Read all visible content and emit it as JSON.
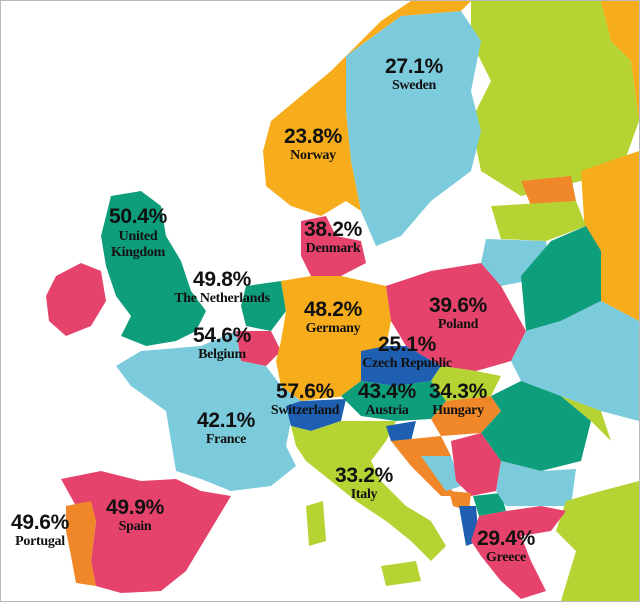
{
  "colors": {
    "sea": "#ffffff",
    "blue": "#7ccbdc",
    "orange": "#f7ad1b",
    "green": "#0f9e7c",
    "pink": "#e5436b",
    "lime": "#b6d334",
    "dark_orange": "#f0882a",
    "navy": "#1e5fb1"
  },
  "labels": {
    "sweden": {
      "pct": "27.1%",
      "name": "Sweden"
    },
    "norway": {
      "pct": "23.8%",
      "name": "Norway"
    },
    "uk": {
      "pct": "50.4%",
      "name": "United Kingdom"
    },
    "denmark": {
      "pct": "38.2%",
      "name": "Denmark"
    },
    "netherlands": {
      "pct": "49.8%",
      "name": "The Netherlands"
    },
    "germany": {
      "pct": "48.2%",
      "name": "Germany"
    },
    "poland": {
      "pct": "39.6%",
      "name": "Poland"
    },
    "belgium": {
      "pct": "54.6%",
      "name": "Belgium"
    },
    "czech": {
      "pct": "25.1%",
      "name": "Czech Republic"
    },
    "switzerland": {
      "pct": "57.6%",
      "name": "Switzerland"
    },
    "austria": {
      "pct": "43.4%",
      "name": "Austria"
    },
    "hungary": {
      "pct": "34.3%",
      "name": "Hungary"
    },
    "france": {
      "pct": "42.1%",
      "name": "France"
    },
    "italy": {
      "pct": "33.2%",
      "name": "Italy"
    },
    "spain": {
      "pct": "49.9%",
      "name": "Spain"
    },
    "portugal": {
      "pct": "49.6%",
      "name": "Portugal"
    },
    "greece": {
      "pct": "29.4%",
      "name": "Greece"
    }
  }
}
